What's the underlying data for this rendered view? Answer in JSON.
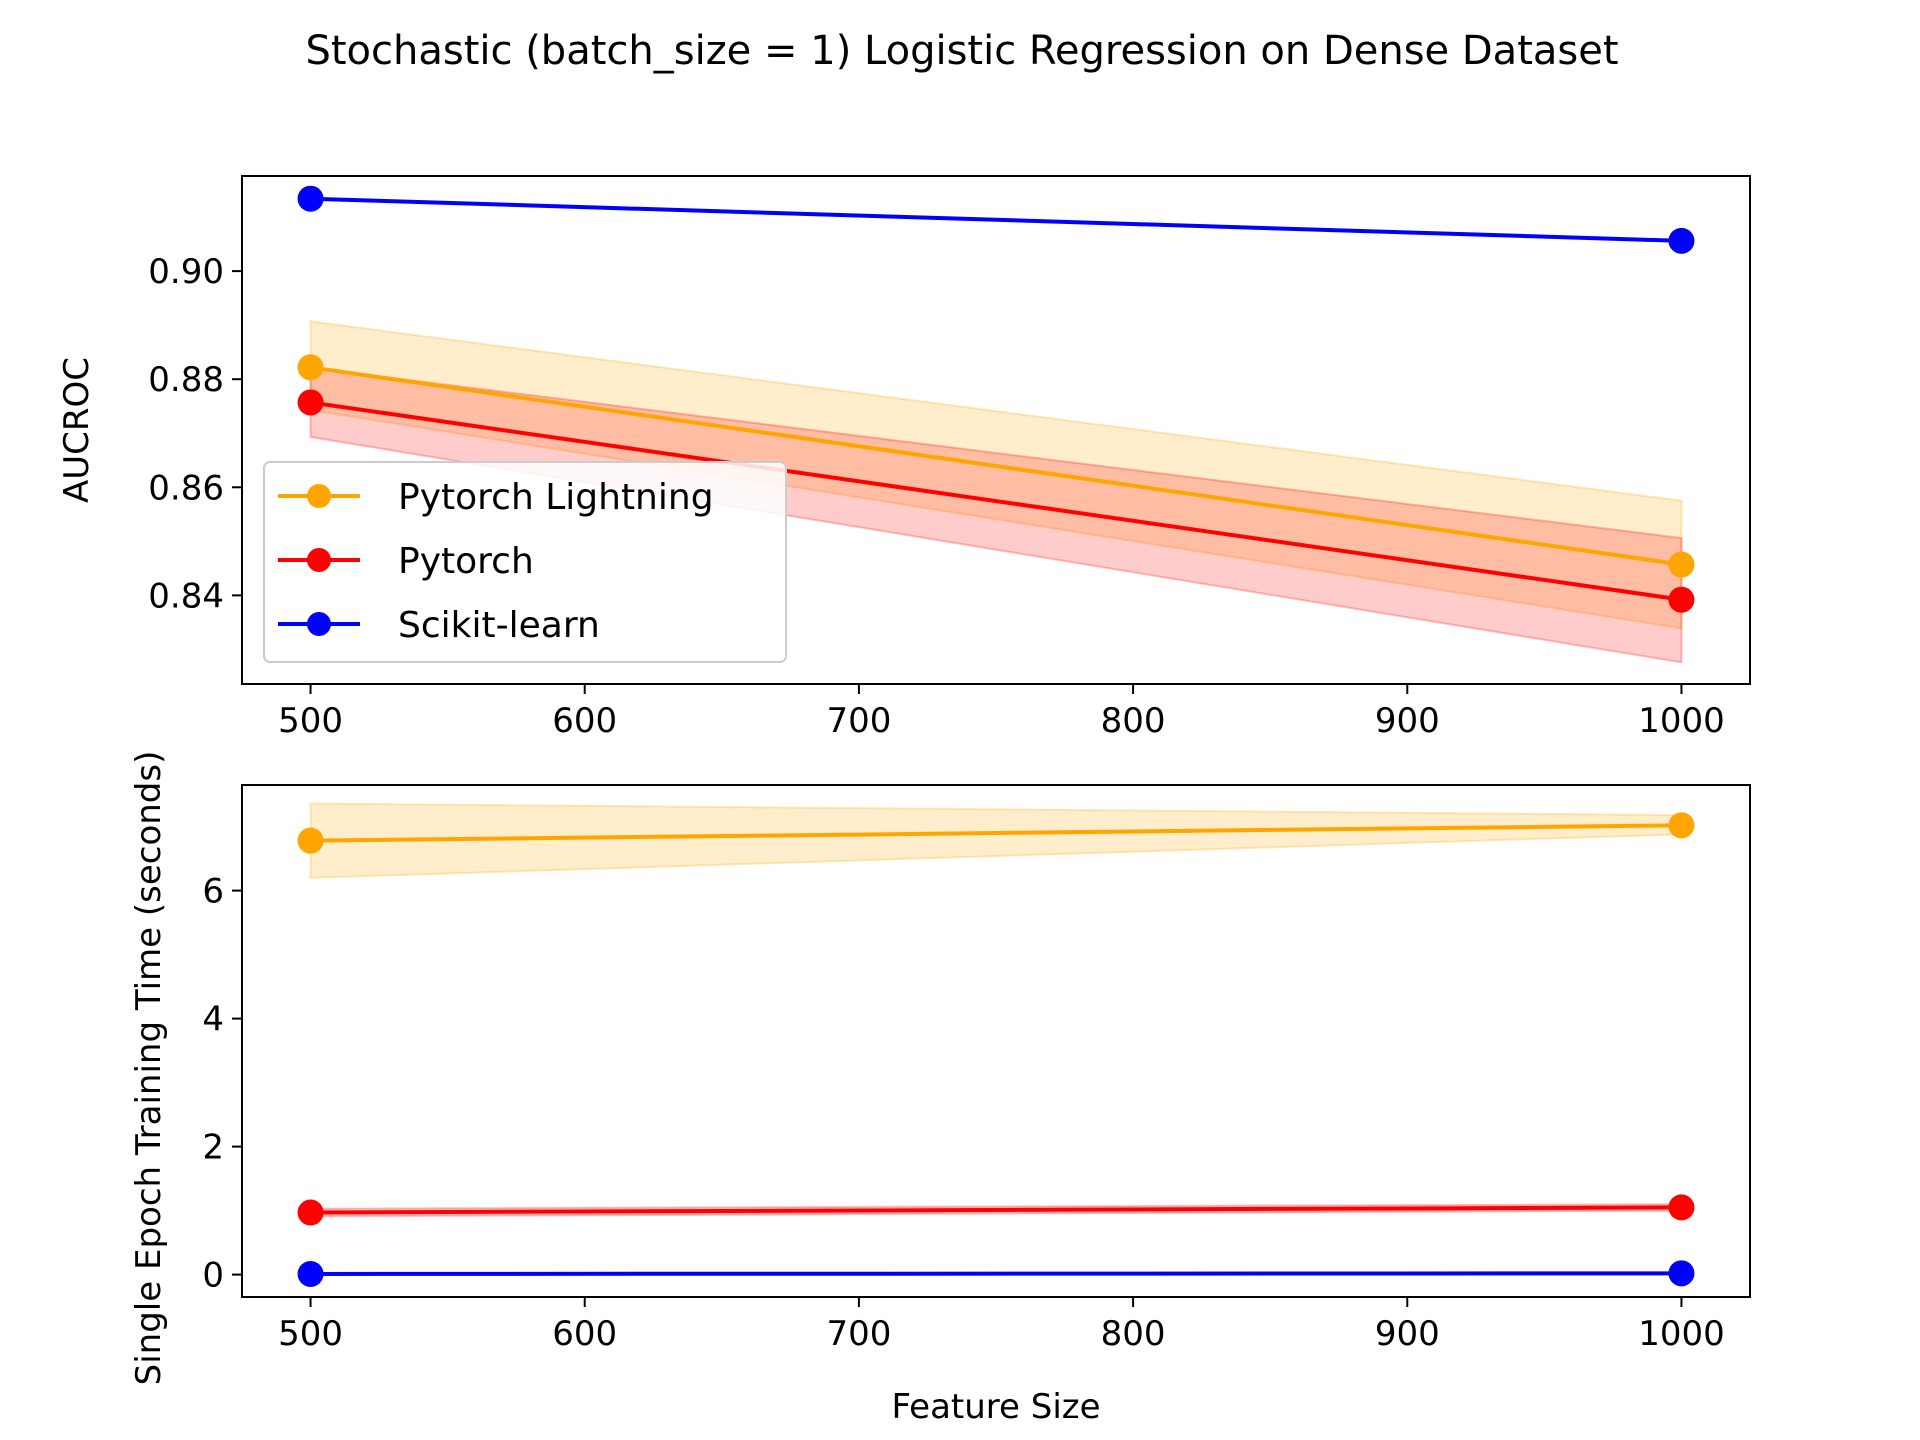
{
  "figure": {
    "title": "Stochastic (batch_size = 1) Logistic Regression on Dense Dataset"
  },
  "chart_data": [
    {
      "type": "line",
      "title": "",
      "xlabel": "",
      "ylabel": "AUCROC",
      "x": [
        500,
        1000
      ],
      "xlim": [
        475,
        1025
      ],
      "ylim": [
        0.8236,
        0.9176
      ],
      "xticks": [
        500,
        600,
        700,
        800,
        900,
        1000
      ],
      "xtick_labels": [
        "500",
        "600",
        "700",
        "800",
        "900",
        "1000"
      ],
      "yticks": [
        0.84,
        0.86,
        0.88,
        0.9
      ],
      "ytick_labels": [
        "0.84",
        "0.86",
        "0.88",
        "0.90"
      ],
      "grid": false,
      "legend": {
        "placement": "lower-left",
        "entries": [
          "Pytorch Lightning",
          "Pytorch",
          "Scikit-learn"
        ]
      },
      "series": [
        {
          "name": "Pytorch Lightning",
          "color": "#ffa500",
          "values": [
            0.8822,
            0.8457
          ],
          "lower": [
            0.8743,
            0.8339
          ],
          "upper": [
            0.8907,
            0.8575
          ]
        },
        {
          "name": "Pytorch",
          "color": "#ff0000",
          "values": [
            0.8757,
            0.8392
          ],
          "lower": [
            0.8693,
            0.8276
          ],
          "upper": [
            0.8821,
            0.8506
          ]
        },
        {
          "name": "Scikit-learn",
          "color": "#0000ff",
          "values": [
            0.9134,
            0.9056
          ],
          "lower": [
            0.9134,
            0.9056
          ],
          "upper": [
            0.9134,
            0.9056
          ]
        }
      ]
    },
    {
      "type": "line",
      "title": "",
      "xlabel": "Feature Size",
      "ylabel": "Single Epoch Training Time (seconds)",
      "x": [
        500,
        1000
      ],
      "xlim": [
        475,
        1025
      ],
      "ylim": [
        -0.35,
        7.65
      ],
      "xticks": [
        500,
        600,
        700,
        800,
        900,
        1000
      ],
      "xtick_labels": [
        "500",
        "600",
        "700",
        "800",
        "900",
        "1000"
      ],
      "yticks": [
        0,
        2,
        4,
        6
      ],
      "ytick_labels": [
        "0",
        "2",
        "4",
        "6"
      ],
      "grid": false,
      "series": [
        {
          "name": "Pytorch Lightning",
          "color": "#ffa500",
          "values": [
            6.78,
            7.02
          ],
          "lower": [
            6.2,
            6.88
          ],
          "upper": [
            7.36,
            7.18
          ]
        },
        {
          "name": "Pytorch",
          "color": "#ff0000",
          "values": [
            0.97,
            1.05
          ],
          "lower": [
            0.91,
            1.0
          ],
          "upper": [
            1.03,
            1.1
          ]
        },
        {
          "name": "Scikit-learn",
          "color": "#0000ff",
          "values": [
            0.01,
            0.02
          ],
          "lower": [
            0.01,
            0.02
          ],
          "upper": [
            0.01,
            0.02
          ]
        }
      ]
    }
  ]
}
